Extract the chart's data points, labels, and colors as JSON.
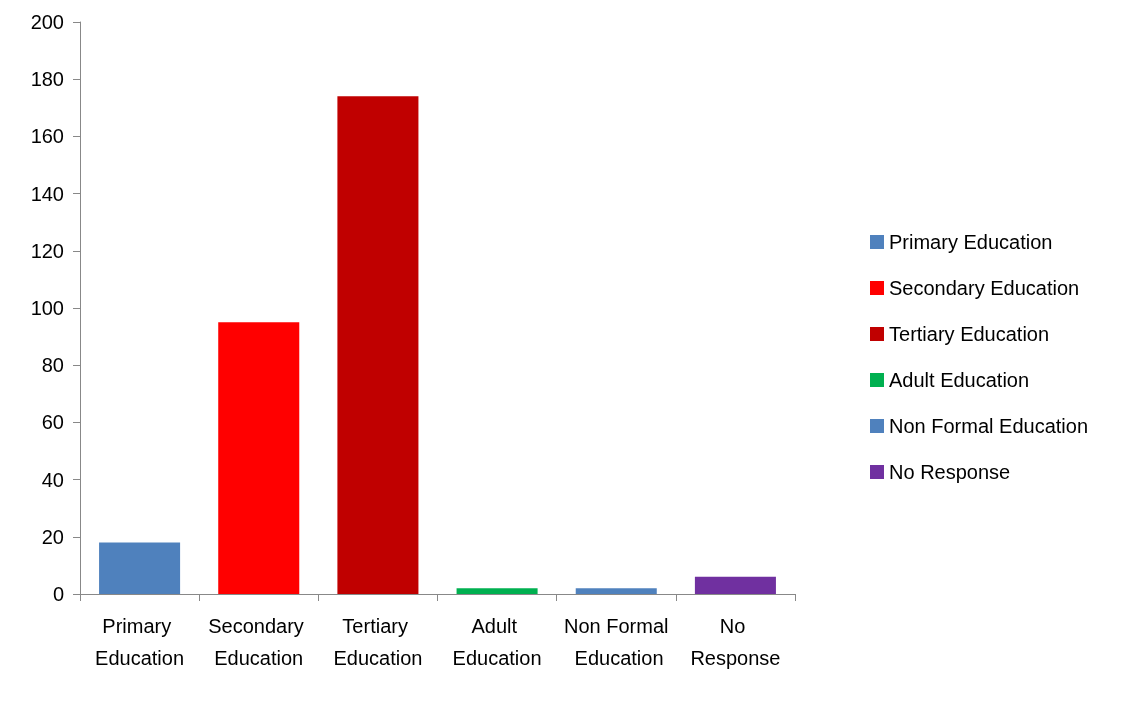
{
  "chart_data": {
    "type": "bar",
    "categories": [
      "Primary Education",
      "Secondary Education",
      "Tertiary Education",
      "Adult Education",
      "Non Formal Education",
      "No Response"
    ],
    "series": [
      {
        "name": "Primary Education",
        "color": "#4f81bd",
        "values": [
          18,
          null,
          null,
          null,
          null,
          null
        ]
      },
      {
        "name": "Secondary Education",
        "color": "#ff0000",
        "values": [
          null,
          95,
          null,
          null,
          null,
          null
        ]
      },
      {
        "name": "Tertiary Education",
        "color": "#c00000",
        "values": [
          null,
          null,
          174,
          null,
          null,
          null
        ]
      },
      {
        "name": "Adult Education",
        "color": "#00b050",
        "values": [
          null,
          null,
          null,
          2,
          null,
          null
        ]
      },
      {
        "name": "Non Formal Education",
        "color": "#4f81bd",
        "values": [
          null,
          null,
          null,
          null,
          2,
          null
        ]
      },
      {
        "name": "No Response",
        "color": "#7030a0",
        "values": [
          null,
          null,
          null,
          null,
          null,
          6
        ]
      }
    ],
    "ylim": [
      0,
      200
    ],
    "yticks": [
      0,
      20,
      40,
      60,
      80,
      100,
      120,
      140,
      160,
      180,
      200
    ],
    "grid": false,
    "legend": "right"
  }
}
